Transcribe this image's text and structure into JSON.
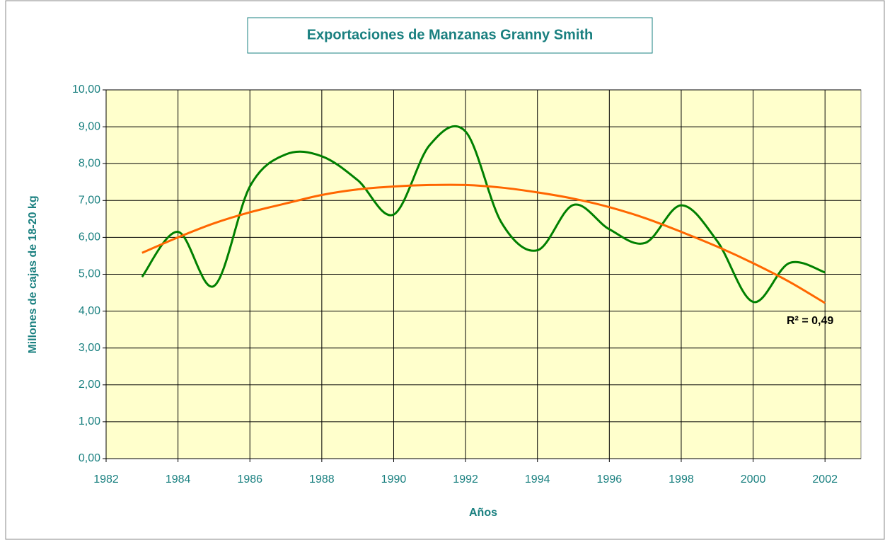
{
  "chart_data": {
    "type": "line",
    "title": "Exportaciones de Manzanas Granny Smith",
    "x_label": "Años",
    "y_label": "Millones de cajas de 18-20 kg",
    "annotation": "R² = 0,49",
    "x": [
      1983,
      1984,
      1985,
      1986,
      1987,
      1988,
      1989,
      1990,
      1991,
      1992,
      1993,
      1994,
      1995,
      1996,
      1997,
      1998,
      1999,
      2000,
      2001,
      2002
    ],
    "series": [
      {
        "color": "#008000",
        "values": [
          4.93,
          6.15,
          4.68,
          7.38,
          8.25,
          8.2,
          7.55,
          6.62,
          8.5,
          8.87,
          6.4,
          5.65,
          6.88,
          6.22,
          5.85,
          6.87,
          5.9,
          4.25,
          5.3,
          5.05
        ]
      },
      {
        "color": "#ff6600",
        "values": [
          5.58,
          6.0,
          6.38,
          6.68,
          6.92,
          7.15,
          7.3,
          7.38,
          7.42,
          7.42,
          7.35,
          7.22,
          7.05,
          6.82,
          6.52,
          6.15,
          5.75,
          5.3,
          4.8,
          4.22
        ]
      }
    ],
    "xlim": [
      1982,
      2003
    ],
    "xticks": [
      1982,
      1984,
      1986,
      1988,
      1990,
      1992,
      1994,
      1996,
      1998,
      2000,
      2002
    ],
    "ylim": [
      0,
      10
    ],
    "yticks": [
      {
        "value": 0,
        "label": "0,00"
      },
      {
        "value": 1,
        "label": "1,00"
      },
      {
        "value": 2,
        "label": "2,00"
      },
      {
        "value": 3,
        "label": "3,00"
      },
      {
        "value": 4,
        "label": "4,00"
      },
      {
        "value": 5,
        "label": "5,00"
      },
      {
        "value": 6,
        "label": "6,00"
      },
      {
        "value": 7,
        "label": "7,00"
      },
      {
        "value": 8,
        "label": "8,00"
      },
      {
        "value": 9,
        "label": "9,00"
      },
      {
        "value": 10,
        "label": "10,00"
      }
    ],
    "grid": true,
    "plot_background": "#ffffcc"
  }
}
